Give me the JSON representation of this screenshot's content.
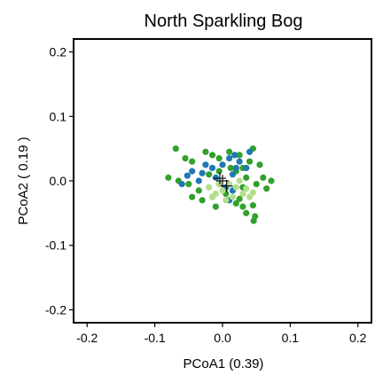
{
  "chart_data": {
    "type": "scatter",
    "title": "North Sparkling Bog",
    "xlabel": "PCoA1 (0.39)",
    "ylabel": "PCoA2 ( 0.19 )",
    "xlim": [
      -0.22,
      0.22
    ],
    "ylim": [
      -0.22,
      0.22
    ],
    "xticks": [
      "-0.2",
      "-0.1",
      "0.0",
      "0.1",
      "0.2"
    ],
    "yticks": [
      "-0.2",
      "-0.1",
      "0.0",
      "0.1",
      "0.2"
    ],
    "grid": false,
    "legend": "none",
    "series": [
      {
        "color": "#33a02c",
        "points": [
          [
            -0.069,
            0.05
          ],
          [
            -0.055,
            0.035
          ],
          [
            -0.045,
            0.03
          ],
          [
            -0.025,
            0.045
          ],
          [
            -0.015,
            0.04
          ],
          [
            -0.005,
            0.035
          ],
          [
            0.01,
            0.045
          ],
          [
            0.025,
            0.04
          ],
          [
            0.04,
            0.03
          ],
          [
            0.055,
            0.025
          ],
          [
            0.045,
            0.05
          ],
          [
            0.03,
            0.02
          ],
          [
            -0.08,
            0.005
          ],
          [
            -0.065,
            0.0
          ],
          [
            -0.05,
            -0.005
          ],
          [
            -0.035,
            -0.015
          ],
          [
            -0.045,
            -0.025
          ],
          [
            -0.03,
            -0.03
          ],
          [
            -0.015,
            -0.025
          ],
          [
            -0.02,
            0.01
          ],
          [
            0.02,
            0.015
          ],
          [
            0.035,
            0.005
          ],
          [
            0.05,
            -0.005
          ],
          [
            0.06,
            0.005
          ],
          [
            0.072,
            0.0
          ],
          [
            0.065,
            -0.012
          ],
          [
            0.03,
            -0.01
          ],
          [
            0.025,
            -0.028
          ],
          [
            0.03,
            -0.04
          ],
          [
            0.02,
            -0.035
          ],
          [
            0.045,
            -0.038
          ],
          [
            0.048,
            -0.055
          ],
          [
            0.046,
            -0.062
          ],
          [
            0.035,
            -0.05
          ],
          [
            -0.01,
            -0.04
          ],
          [
            0.005,
            -0.02
          ],
          [
            -0.005,
            0.015
          ],
          [
            0.012,
            0.02
          ]
        ]
      },
      {
        "color": "#1f78b4",
        "points": [
          [
            -0.06,
            -0.005
          ],
          [
            -0.045,
            0.015
          ],
          [
            -0.035,
            0.0
          ],
          [
            -0.025,
            0.025
          ],
          [
            -0.015,
            0.02
          ],
          [
            -0.01,
            0.005
          ],
          [
            0.0,
            0.025
          ],
          [
            0.01,
            0.035
          ],
          [
            0.018,
            0.04
          ],
          [
            0.025,
            0.03
          ],
          [
            0.04,
            0.045
          ],
          [
            0.015,
            0.01
          ],
          [
            -0.005,
            -0.005
          ],
          [
            0.005,
            -0.01
          ],
          [
            0.015,
            -0.015
          ],
          [
            0.02,
            0.02
          ],
          [
            0.035,
            0.02
          ],
          [
            0.01,
            -0.03
          ],
          [
            -0.052,
            0.008
          ],
          [
            -0.03,
            0.012
          ]
        ]
      },
      {
        "color": "#b2df8a",
        "points": [
          [
            -0.02,
            -0.01
          ],
          [
            -0.01,
            -0.02
          ],
          [
            0.0,
            -0.015
          ],
          [
            0.01,
            -0.005
          ],
          [
            0.02,
            -0.01
          ],
          [
            0.03,
            -0.02
          ],
          [
            0.04,
            -0.025
          ],
          [
            0.015,
            -0.025
          ],
          [
            0.005,
            -0.03
          ],
          [
            -0.005,
            -0.005
          ],
          [
            0.025,
            0.0
          ],
          [
            -0.015,
            -0.025
          ],
          [
            0.035,
            -0.012
          ],
          [
            0.045,
            -0.018
          ]
        ]
      }
    ],
    "centroids": [
      [
        -0.004,
        0.004
      ],
      [
        0.006,
        -0.008
      ],
      [
        0.0,
        0.0
      ]
    ]
  }
}
